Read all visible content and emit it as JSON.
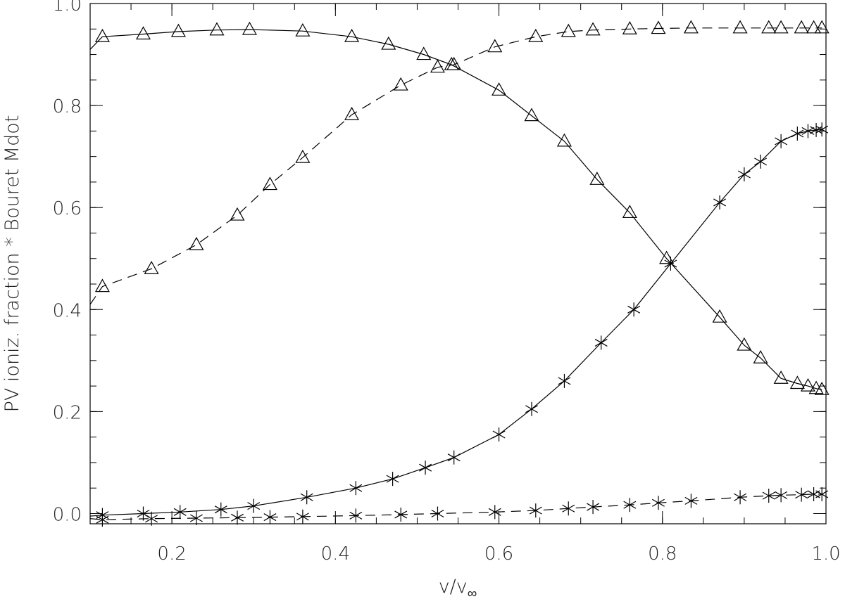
{
  "chart_data": {
    "type": "line",
    "title": "",
    "xlabel": "v/v",
    "xlabel_subscript": "∞",
    "ylabel": "PV ioniz. fraction * Bouret Mdot",
    "xlim": [
      0.1,
      1.0
    ],
    "ylim": [
      -0.02,
      1.0
    ],
    "x_ticks": [
      0.2,
      0.4,
      0.6,
      0.8,
      1.0
    ],
    "x_tick_labels": [
      "0.2",
      "0.4",
      "0.6",
      "0.8",
      "1.0"
    ],
    "y_ticks": [
      0.0,
      0.2,
      0.4,
      0.6,
      0.8,
      1.0
    ],
    "y_tick_labels": [
      "0.0",
      "0.2",
      "0.4",
      "0.6",
      "0.8",
      "1.0"
    ],
    "grid": false,
    "legend": "none",
    "series": [
      {
        "linestyle": "solid",
        "marker": "triangle",
        "x": [
          0.1,
          0.115,
          0.165,
          0.208,
          0.255,
          0.295,
          0.36,
          0.42,
          0.465,
          0.508,
          0.542,
          0.6,
          0.64,
          0.68,
          0.72,
          0.76,
          0.805,
          0.87,
          0.9,
          0.92,
          0.945,
          0.965,
          0.978,
          0.988,
          0.995
        ],
        "y": [
          0.91,
          0.935,
          0.94,
          0.945,
          0.948,
          0.949,
          0.946,
          0.935,
          0.92,
          0.9,
          0.88,
          0.83,
          0.78,
          0.73,
          0.655,
          0.59,
          0.5,
          0.385,
          0.33,
          0.305,
          0.265,
          0.255,
          0.25,
          0.245,
          0.243
        ]
      },
      {
        "linestyle": "dashed",
        "marker": "triangle",
        "x": [
          0.1,
          0.115,
          0.175,
          0.23,
          0.28,
          0.32,
          0.36,
          0.42,
          0.48,
          0.525,
          0.545,
          0.595,
          0.645,
          0.685,
          0.715,
          0.76,
          0.795,
          0.835,
          0.895,
          0.93,
          0.945,
          0.97,
          0.985,
          0.995
        ],
        "y": [
          0.41,
          0.445,
          0.48,
          0.527,
          0.585,
          0.645,
          0.698,
          0.782,
          0.84,
          0.875,
          0.88,
          0.915,
          0.935,
          0.945,
          0.948,
          0.95,
          0.951,
          0.952,
          0.952,
          0.952,
          0.952,
          0.952,
          0.952,
          0.952
        ]
      },
      {
        "linestyle": "solid",
        "marker": "asterisk",
        "x": [
          0.1,
          0.115,
          0.165,
          0.21,
          0.26,
          0.3,
          0.365,
          0.425,
          0.47,
          0.51,
          0.545,
          0.6,
          0.64,
          0.68,
          0.725,
          0.765,
          0.81,
          0.87,
          0.9,
          0.92,
          0.945,
          0.965,
          0.978,
          0.988,
          0.995
        ],
        "y": [
          -0.005,
          -0.003,
          0.0,
          0.003,
          0.008,
          0.015,
          0.032,
          0.05,
          0.068,
          0.09,
          0.11,
          0.155,
          0.205,
          0.26,
          0.335,
          0.4,
          0.49,
          0.61,
          0.665,
          0.69,
          0.73,
          0.745,
          0.75,
          0.752,
          0.753
        ]
      },
      {
        "linestyle": "dashed",
        "marker": "asterisk",
        "x": [
          0.1,
          0.115,
          0.175,
          0.23,
          0.28,
          0.32,
          0.36,
          0.425,
          0.48,
          0.525,
          0.595,
          0.645,
          0.685,
          0.715,
          0.76,
          0.795,
          0.835,
          0.895,
          0.93,
          0.945,
          0.97,
          0.985,
          0.995
        ],
        "y": [
          -0.01,
          -0.012,
          -0.01,
          -0.009,
          -0.008,
          -0.007,
          -0.006,
          -0.004,
          -0.002,
          0.0,
          0.003,
          0.006,
          0.01,
          0.013,
          0.017,
          0.021,
          0.025,
          0.032,
          0.035,
          0.036,
          0.037,
          0.038,
          0.038
        ]
      }
    ]
  }
}
